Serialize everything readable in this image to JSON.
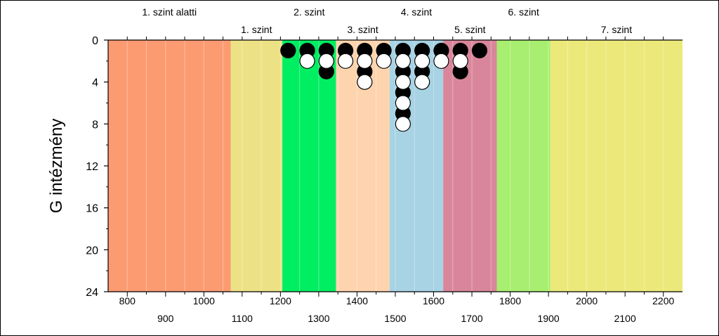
{
  "chart_data": {
    "type": "scatter",
    "ylabel": "G intézmény",
    "xlim": [
      750,
      2250
    ],
    "ylim": [
      0,
      24
    ],
    "y_inverted": true,
    "x_ticks_row1": [
      800,
      1000,
      1200,
      1400,
      1600,
      1800,
      2000,
      2200
    ],
    "x_ticks_row2": [
      900,
      1100,
      1300,
      1500,
      1700,
      1900,
      2100
    ],
    "y_ticks": [
      0,
      4,
      8,
      12,
      16,
      20,
      24
    ],
    "x_tick_labels_row1": [
      "800",
      "1000",
      "1200",
      "1400",
      "1600",
      "1800",
      "2000",
      "2200"
    ],
    "x_tick_labels_row2": [
      "900",
      "1100",
      "1300",
      "1500",
      "1700",
      "1900",
      "2100"
    ],
    "y_tick_labels": [
      "0",
      "4",
      "8",
      "12",
      "16",
      "20",
      "24"
    ],
    "grid": "vertical",
    "levels": [
      {
        "label": "1. szint alatti",
        "from": 750,
        "to": 1070,
        "color": "#fc9b71",
        "label_row": 1
      },
      {
        "label": "1. szint",
        "from": 1070,
        "to": 1205,
        "color": "#ece285",
        "label_row": 2
      },
      {
        "label": "2. szint",
        "from": 1205,
        "to": 1345,
        "color": "#00ee62",
        "label_row": 1
      },
      {
        "label": "3. szint",
        "from": 1345,
        "to": 1485,
        "color": "#fdd4ae",
        "label_row": 2
      },
      {
        "label": "4. szint",
        "from": 1485,
        "to": 1625,
        "color": "#a7d3e4",
        "label_row": 1
      },
      {
        "label": "5. szint",
        "from": 1625,
        "to": 1765,
        "color": "#d9869b",
        "label_row": 2
      },
      {
        "label": "6. szint",
        "from": 1765,
        "to": 1905,
        "color": "#a8ee70",
        "label_row": 1
      },
      {
        "label": "7. szint",
        "from": 1905,
        "to": 2250,
        "color": "#ece97b",
        "label_row": 2
      }
    ],
    "series": [
      {
        "color": "black",
        "points": [
          [
            1220,
            1
          ],
          [
            1270,
            1
          ],
          [
            1320,
            1
          ],
          [
            1320,
            3
          ],
          [
            1370,
            1
          ],
          [
            1420,
            1
          ],
          [
            1420,
            3
          ],
          [
            1470,
            1
          ],
          [
            1520,
            1
          ],
          [
            1520,
            3
          ],
          [
            1520,
            5
          ],
          [
            1520,
            7
          ],
          [
            1570,
            1
          ],
          [
            1570,
            3
          ],
          [
            1620,
            1
          ],
          [
            1670,
            1
          ],
          [
            1670,
            3
          ],
          [
            1720,
            1
          ]
        ]
      },
      {
        "color": "white",
        "points": [
          [
            1270,
            2
          ],
          [
            1320,
            2
          ],
          [
            1370,
            2
          ],
          [
            1420,
            2
          ],
          [
            1420,
            4
          ],
          [
            1470,
            2
          ],
          [
            1520,
            2
          ],
          [
            1520,
            4
          ],
          [
            1520,
            6
          ],
          [
            1520,
            8
          ],
          [
            1570,
            2
          ],
          [
            1570,
            4
          ],
          [
            1620,
            2
          ],
          [
            1670,
            2
          ]
        ]
      }
    ]
  }
}
